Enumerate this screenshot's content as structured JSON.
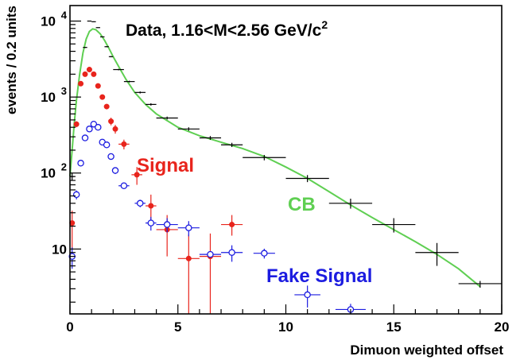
{
  "chart_data": {
    "type": "scatter",
    "title_main": "Data, 1.16<M<2.56 GeV/c",
    "title_sup": "2",
    "xlabel": "Dimuon weighted offset",
    "ylabel": "events / 0.2 units",
    "xlim": [
      0,
      20
    ],
    "ylim": [
      1.4,
      16000
    ],
    "yscale": "log",
    "grid": false,
    "x_ticks": [
      "0",
      "5",
      "10",
      "15",
      "20"
    ],
    "y_ticks": [
      {
        "base": "10",
        "exp": "4"
      },
      {
        "base": "10",
        "exp": "3"
      },
      {
        "base": "10",
        "exp": "2"
      },
      {
        "base": "10",
        "exp": ""
      }
    ],
    "annotations": [
      {
        "text": "Signal",
        "color": "#e8241c"
      },
      {
        "text": "CB",
        "color": "#5fcf52"
      },
      {
        "text": "Fake Signal",
        "color": "#1c1ce0"
      }
    ],
    "series": [
      {
        "key": "data",
        "color": "#000000",
        "marker": "none",
        "points": [
          {
            "x": 0.1,
            "y": 90,
            "xerr": 0.1,
            "yerr": [
              10,
              10
            ]
          },
          {
            "x": 0.3,
            "y": 450,
            "xerr": 0.1,
            "yerr": [
              25,
              25
            ]
          },
          {
            "x": 0.5,
            "y": 1450,
            "xerr": 0.1,
            "yerr": [
              40,
              40
            ]
          },
          {
            "x": 0.7,
            "y": 4500,
            "xerr": 0.1,
            "yerr": [
              70,
              70
            ]
          },
          {
            "x": 0.9,
            "y": 10000,
            "xerr": 0.1,
            "yerr": [
              100,
              100
            ]
          },
          {
            "x": 1.1,
            "y": 9800,
            "xerr": 0.1,
            "yerr": [
              100,
              100
            ]
          },
          {
            "x": 1.3,
            "y": 8200,
            "xerr": 0.1,
            "yerr": [
              90,
              90
            ]
          },
          {
            "x": 1.5,
            "y": 6200,
            "xerr": 0.1,
            "yerr": [
              80,
              80
            ]
          },
          {
            "x": 1.7,
            "y": 4600,
            "xerr": 0.1,
            "yerr": [
              70,
              70
            ]
          },
          {
            "x": 1.9,
            "y": 3400,
            "xerr": 0.1,
            "yerr": [
              60,
              60
            ]
          },
          {
            "x": 2.25,
            "y": 2300,
            "xerr": 0.25,
            "yerr": [
              50,
              50
            ]
          },
          {
            "x": 2.75,
            "y": 1600,
            "xerr": 0.25,
            "yerr": [
              40,
              40
            ]
          },
          {
            "x": 3.25,
            "y": 1150,
            "xerr": 0.25,
            "yerr": [
              35,
              35
            ]
          },
          {
            "x": 3.75,
            "y": 800,
            "xerr": 0.25,
            "yerr": [
              28,
              28
            ]
          },
          {
            "x": 4.5,
            "y": 530,
            "xerr": 0.5,
            "yerr": [
              23,
              23
            ]
          },
          {
            "x": 5.5,
            "y": 380,
            "xerr": 0.5,
            "yerr": [
              20,
              20
            ]
          },
          {
            "x": 6.5,
            "y": 290,
            "xerr": 0.5,
            "yerr": [
              17,
              17
            ]
          },
          {
            "x": 7.5,
            "y": 235,
            "xerr": 0.5,
            "yerr": [
              15,
              15
            ]
          },
          {
            "x": 9.0,
            "y": 160,
            "xerr": 1.0,
            "yerr": [
              13,
              13
            ]
          },
          {
            "x": 11.0,
            "y": 85,
            "xerr": 1.0,
            "yerr": [
              9,
              9
            ]
          },
          {
            "x": 13.0,
            "y": 40,
            "xerr": 1.0,
            "yerr": [
              6,
              6
            ]
          },
          {
            "x": 15.0,
            "y": 21,
            "xerr": 1.0,
            "yerr": [
              4.5,
              4.5
            ]
          },
          {
            "x": 17.0,
            "y": 9,
            "xerr": 1.0,
            "yerr": [
              3,
              3
            ]
          },
          {
            "x": 19.0,
            "y": 3.5,
            "xerr": 1.0,
            "yerr": [
              0.4,
              0.3
            ]
          }
        ]
      },
      {
        "key": "signal",
        "color": "#e8241c",
        "marker": "filled-circle",
        "points": [
          {
            "x": 0.1,
            "y": 22,
            "xerr": 0,
            "yerr": [
              12,
              10
            ]
          },
          {
            "x": 0.3,
            "y": 440,
            "xerr": 0,
            "yerr": [
              40,
              40
            ]
          },
          {
            "x": 0.5,
            "y": 1500,
            "xerr": 0,
            "yerr": [
              80,
              80
            ]
          },
          {
            "x": 0.7,
            "y": 2000,
            "xerr": 0,
            "yerr": [
              90,
              90
            ]
          },
          {
            "x": 0.9,
            "y": 2300,
            "xerr": 0,
            "yerr": [
              100,
              100
            ]
          },
          {
            "x": 1.1,
            "y": 2000,
            "xerr": 0,
            "yerr": [
              90,
              90
            ]
          },
          {
            "x": 1.3,
            "y": 1400,
            "xerr": 0,
            "yerr": [
              80,
              80
            ]
          },
          {
            "x": 1.5,
            "y": 1000,
            "xerr": 0,
            "yerr": [
              70,
              70
            ]
          },
          {
            "x": 1.7,
            "y": 750,
            "xerr": 0,
            "yerr": [
              60,
              60
            ]
          },
          {
            "x": 1.9,
            "y": 480,
            "xerr": 0,
            "yerr": [
              55,
              55
            ]
          },
          {
            "x": 2.1,
            "y": 380,
            "xerr": 0,
            "yerr": [
              50,
              50
            ]
          },
          {
            "x": 2.5,
            "y": 240,
            "xerr": 0.25,
            "yerr": [
              35,
              35
            ]
          },
          {
            "x": 3.1,
            "y": 95,
            "xerr": 0.25,
            "yerr": [
              25,
              25
            ]
          },
          {
            "x": 3.75,
            "y": 37,
            "xerr": 0.25,
            "yerr": [
              15,
              15
            ]
          },
          {
            "x": 4.5,
            "y": 18,
            "xerr": 0.5,
            "yerr": [
              10,
              10
            ]
          },
          {
            "x": 5.5,
            "y": 7.5,
            "xerr": 0.5,
            "yerr": [
              6.2,
              8
            ]
          },
          {
            "x": 6.5,
            "y": 8.0,
            "xerr": 0.5,
            "yerr": [
              6.7,
              8
            ]
          },
          {
            "x": 7.5,
            "y": 21,
            "xerr": 0.5,
            "yerr": [
              6,
              7
            ]
          }
        ]
      },
      {
        "key": "fake",
        "color": "#1c1ce0",
        "marker": "open-circle",
        "points": [
          {
            "x": 0.1,
            "y": 8,
            "xerr": 0.1,
            "yerr": [
              2.5,
              2.5
            ]
          },
          {
            "x": 0.3,
            "y": 52,
            "xerr": 0.1,
            "yerr": [
              7,
              7
            ]
          },
          {
            "x": 0.5,
            "y": 135,
            "xerr": 0.1,
            "yerr": [
              12,
              12
            ]
          },
          {
            "x": 0.7,
            "y": 290,
            "xerr": 0.1,
            "yerr": [
              17,
              17
            ]
          },
          {
            "x": 0.9,
            "y": 380,
            "xerr": 0.1,
            "yerr": [
              20,
              20
            ]
          },
          {
            "x": 1.1,
            "y": 440,
            "xerr": 0.1,
            "yerr": [
              22,
              22
            ]
          },
          {
            "x": 1.3,
            "y": 400,
            "xerr": 0.1,
            "yerr": [
              20,
              20
            ]
          },
          {
            "x": 1.5,
            "y": 255,
            "xerr": 0.1,
            "yerr": [
              16,
              16
            ]
          },
          {
            "x": 1.7,
            "y": 235,
            "xerr": 0.1,
            "yerr": [
              15,
              15
            ]
          },
          {
            "x": 1.9,
            "y": 165,
            "xerr": 0.1,
            "yerr": [
              13,
              13
            ]
          },
          {
            "x": 2.1,
            "y": 108,
            "xerr": 0.1,
            "yerr": [
              11,
              11
            ]
          },
          {
            "x": 2.5,
            "y": 68,
            "xerr": 0.25,
            "yerr": [
              6,
              6
            ]
          },
          {
            "x": 3.25,
            "y": 40,
            "xerr": 0.25,
            "yerr": [
              4.5,
              4.5
            ]
          },
          {
            "x": 3.75,
            "y": 22,
            "xerr": 0.25,
            "yerr": [
              4.5,
              4.5
            ]
          },
          {
            "x": 4.5,
            "y": 21,
            "xerr": 0.5,
            "yerr": [
              4.5,
              4.5
            ]
          },
          {
            "x": 5.5,
            "y": 19,
            "xerr": 0.5,
            "yerr": [
              4.3,
              4.3
            ]
          },
          {
            "x": 6.5,
            "y": 8.5,
            "xerr": 0.5,
            "yerr": [
              0.6,
              0.6
            ]
          },
          {
            "x": 7.5,
            "y": 9,
            "xerr": 0.5,
            "yerr": [
              2.2,
              2.2
            ]
          },
          {
            "x": 9.0,
            "y": 8.8,
            "xerr": 0.5,
            "yerr": [
              1.3,
              1.3
            ]
          },
          {
            "x": 11.0,
            "y": 2.5,
            "xerr": 0.6,
            "yerr": [
              0.8,
              0.8
            ]
          },
          {
            "x": 13.0,
            "y": 1.6,
            "xerr": 0.7,
            "yerr": [
              0.3,
              0.3
            ]
          }
        ]
      }
    ],
    "cb_curve": [
      [
        0.0,
        90
      ],
      [
        0.1,
        200
      ],
      [
        0.2,
        450
      ],
      [
        0.3,
        900
      ],
      [
        0.45,
        2000
      ],
      [
        0.6,
        3800
      ],
      [
        0.75,
        5800
      ],
      [
        0.9,
        7300
      ],
      [
        1.05,
        7900
      ],
      [
        1.2,
        7700
      ],
      [
        1.4,
        6800
      ],
      [
        1.6,
        5600
      ],
      [
        1.8,
        4400
      ],
      [
        2.0,
        3400
      ],
      [
        2.3,
        2400
      ],
      [
        2.6,
        1700
      ],
      [
        3.0,
        1150
      ],
      [
        3.5,
        800
      ],
      [
        4.0,
        600
      ],
      [
        5.0,
        400
      ],
      [
        6.0,
        310
      ],
      [
        7.0,
        255
      ],
      [
        8.0,
        210
      ],
      [
        9.0,
        165
      ],
      [
        10.0,
        120
      ],
      [
        11.0,
        85
      ],
      [
        12.0,
        57
      ],
      [
        13.0,
        38
      ],
      [
        14.0,
        26
      ],
      [
        15.0,
        18
      ],
      [
        16.0,
        12.5
      ],
      [
        17.0,
        8.5
      ],
      [
        18.0,
        5.5
      ],
      [
        19.0,
        3.2
      ]
    ]
  }
}
